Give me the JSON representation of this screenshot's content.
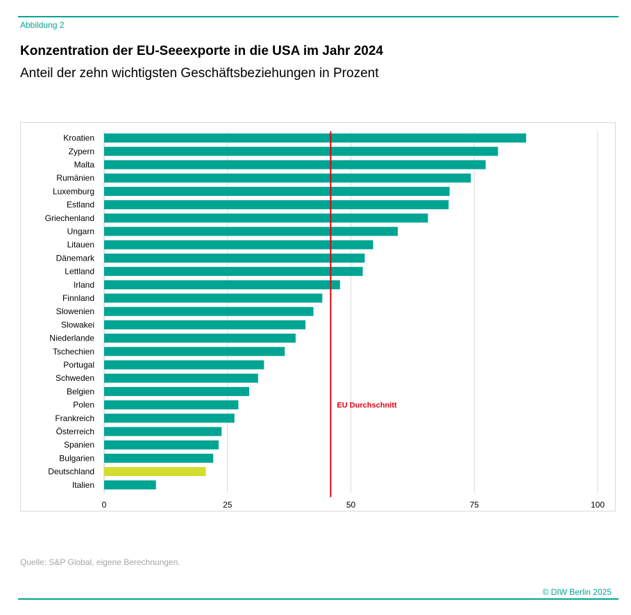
{
  "figure_label": "Abbildung 2",
  "title": "Konzentration der EU-Seeexporte in die USA im Jahr 2024",
  "subtitle": "Anteil der zehn wichtigsten Geschäftsbeziehungen in Prozent",
  "source": "Quelle:  S&P Global, eigene Berechnungen.",
  "copyright": "© DIW Berlin 2025",
  "colors": {
    "bar": "#00a493",
    "highlight": "#d4dc2f",
    "average": "#e3000f",
    "grid": "#d9d9d9",
    "accent": "#00a493"
  },
  "chart_data": {
    "type": "bar",
    "orientation": "horizontal",
    "categories": [
      "Kroatien",
      "Zypern",
      "Malta",
      "Rumänien",
      "Luxemburg",
      "Estland",
      "Griechenland",
      "Ungarn",
      "Litauen",
      "Dänemark",
      "Lettland",
      "Irland",
      "Finnland",
      "Slowenien",
      "Slowakei",
      "Niederlande",
      "Tschechien",
      "Portugal",
      "Schweden",
      "Belgien",
      "Polen",
      "Frankreich",
      "Österreich",
      "Spanien",
      "Bulgarien",
      "Deutschland",
      "Italien"
    ],
    "values": [
      85.5,
      79.8,
      77.3,
      74.3,
      70.0,
      69.8,
      65.6,
      59.5,
      54.5,
      52.8,
      52.4,
      47.8,
      44.2,
      42.4,
      40.8,
      38.8,
      36.6,
      32.4,
      31.2,
      29.4,
      27.2,
      26.4,
      23.8,
      23.2,
      22.1,
      20.6,
      10.5
    ],
    "highlight": "Deutschland",
    "reference_line": {
      "value": 45.9,
      "label": "EU Durchschnitt"
    },
    "xlim": [
      0,
      100
    ],
    "xticks": [
      0,
      25,
      50,
      75,
      100
    ],
    "grid": true,
    "xlabel": "",
    "ylabel": ""
  }
}
